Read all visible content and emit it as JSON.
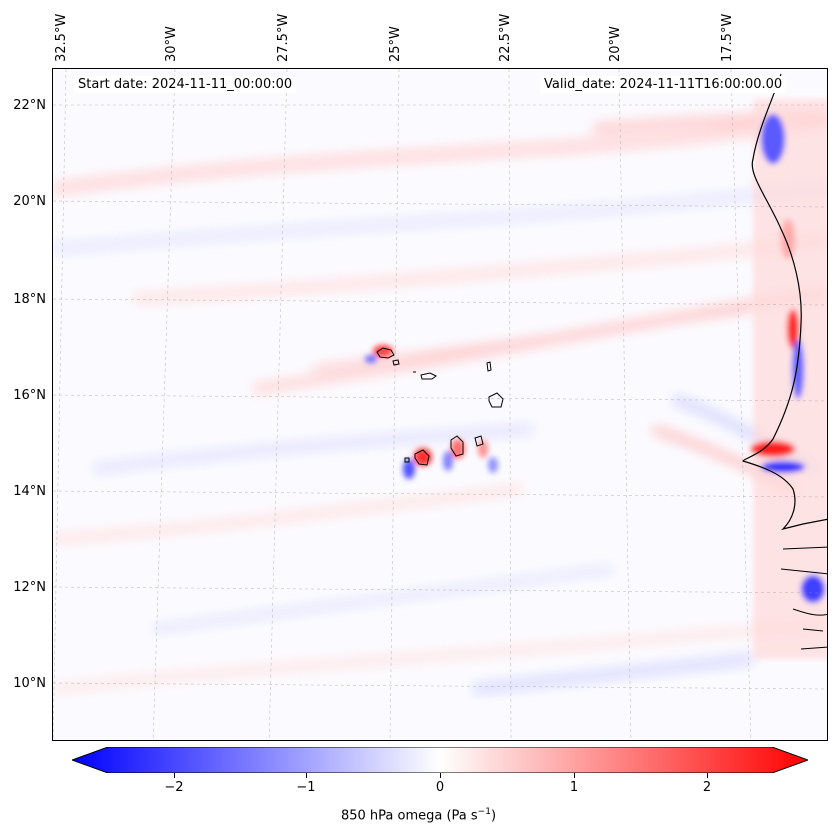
{
  "map": {
    "projection_hint": "Lambert-like, lat 9–22.5°N, lon 33°W–15.5°W",
    "lon_labels": [
      "32.5°W",
      "30°W",
      "27.5°W",
      "25°W",
      "22.5°W",
      "20°W",
      "17.5°W"
    ],
    "lat_labels": [
      "22°N",
      "20°N",
      "18°N",
      "16°N",
      "14°N",
      "12°N",
      "10°N"
    ],
    "start_date": "Start date: 2024-11-11_00:00:00",
    "valid_date": "Valid_date: 2024-11-11T16:00:00.00"
  },
  "colorbar": {
    "ticks": [
      "−2",
      "−1",
      "0",
      "1",
      "2"
    ],
    "label_main": "850 hPa omega (Pa s",
    "label_sup": "−1",
    "label_end": ")",
    "colormap": "bwr",
    "range": [
      -2.5,
      2.5
    ],
    "colors": {
      "negative": "#0000ff",
      "zero": "#ffffff",
      "positive": "#ff0000"
    }
  }
}
